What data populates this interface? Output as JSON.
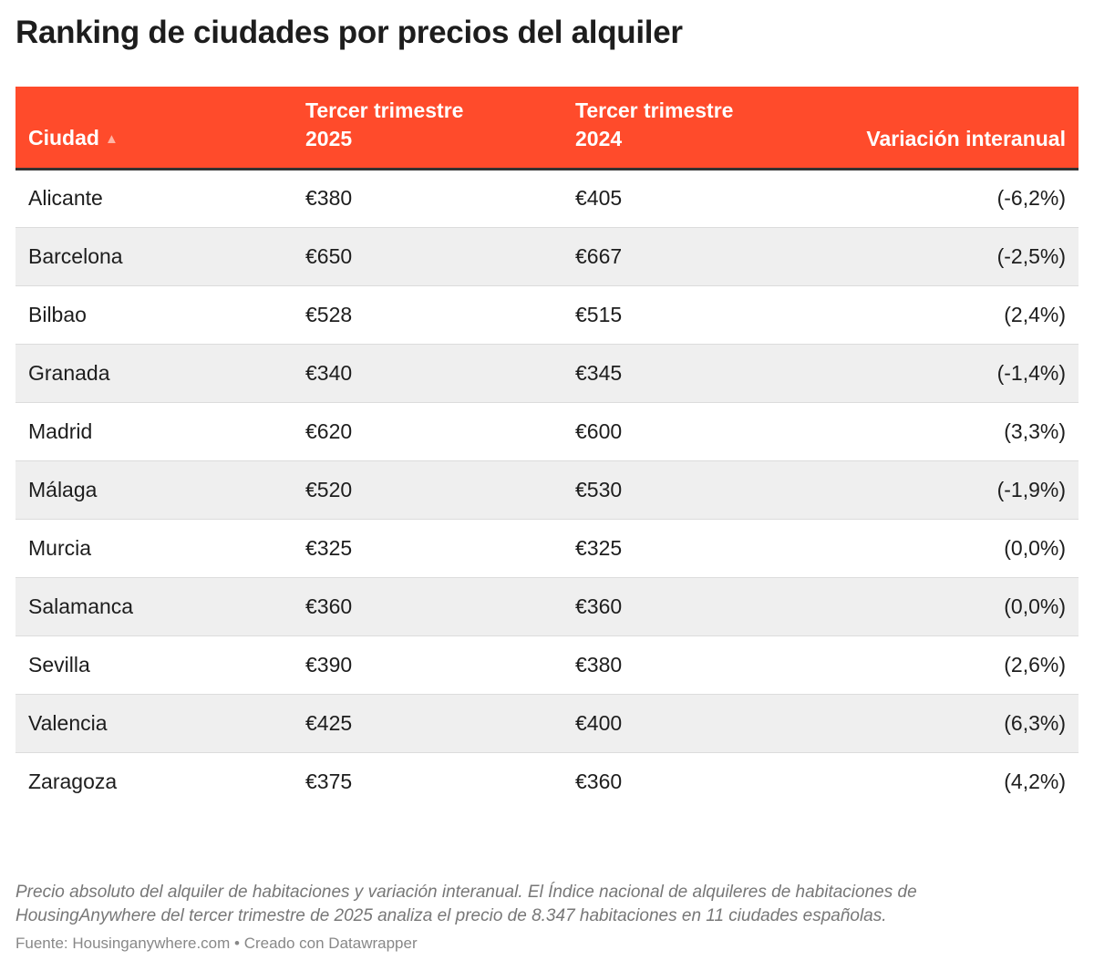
{
  "header": {
    "title": "Ranking de ciudades por precios del alquiler"
  },
  "table": {
    "columns": [
      "Ciudad",
      "Tercer trimestre 2025",
      "Tercer trimestre 2024",
      "Variación interanual"
    ],
    "rows": [
      [
        "Alicante",
        "€380",
        "€405",
        "(-6,2%)"
      ],
      [
        "Barcelona",
        "€650",
        "€667",
        "(-2,5%)"
      ],
      [
        "Bilbao",
        "€528",
        "€515",
        "(2,4%)"
      ],
      [
        "Granada",
        "€340",
        "€345",
        "(-1,4%)"
      ],
      [
        "Madrid",
        "€620",
        "€600",
        "(3,3%)"
      ],
      [
        "Málaga",
        "€520",
        "€530",
        "(-1,9%)"
      ],
      [
        "Murcia",
        "€325",
        "€325",
        "(0,0%)"
      ],
      [
        "Salamanca",
        "€360",
        "€360",
        "(0,0%)"
      ],
      [
        "Sevilla",
        "€390",
        "€380",
        "(2,6%)"
      ],
      [
        "Valencia",
        "€425",
        "€400",
        "(6,3%)"
      ],
      [
        "Zaragoza",
        "€375",
        "€360",
        "(4,2%)"
      ]
    ]
  },
  "footer": {
    "notes": "Precio absoluto del alquiler de habitaciones y variación interanual. El Índice nacional de alquileres de habitaciones de HousingAnywhere del tercer trimestre de 2025 analiza el precio de 8.347 habitaciones en 11 ciudades españolas.",
    "source": "Fuente: Housinganywhere.com • Creado con Datawrapper"
  }
}
